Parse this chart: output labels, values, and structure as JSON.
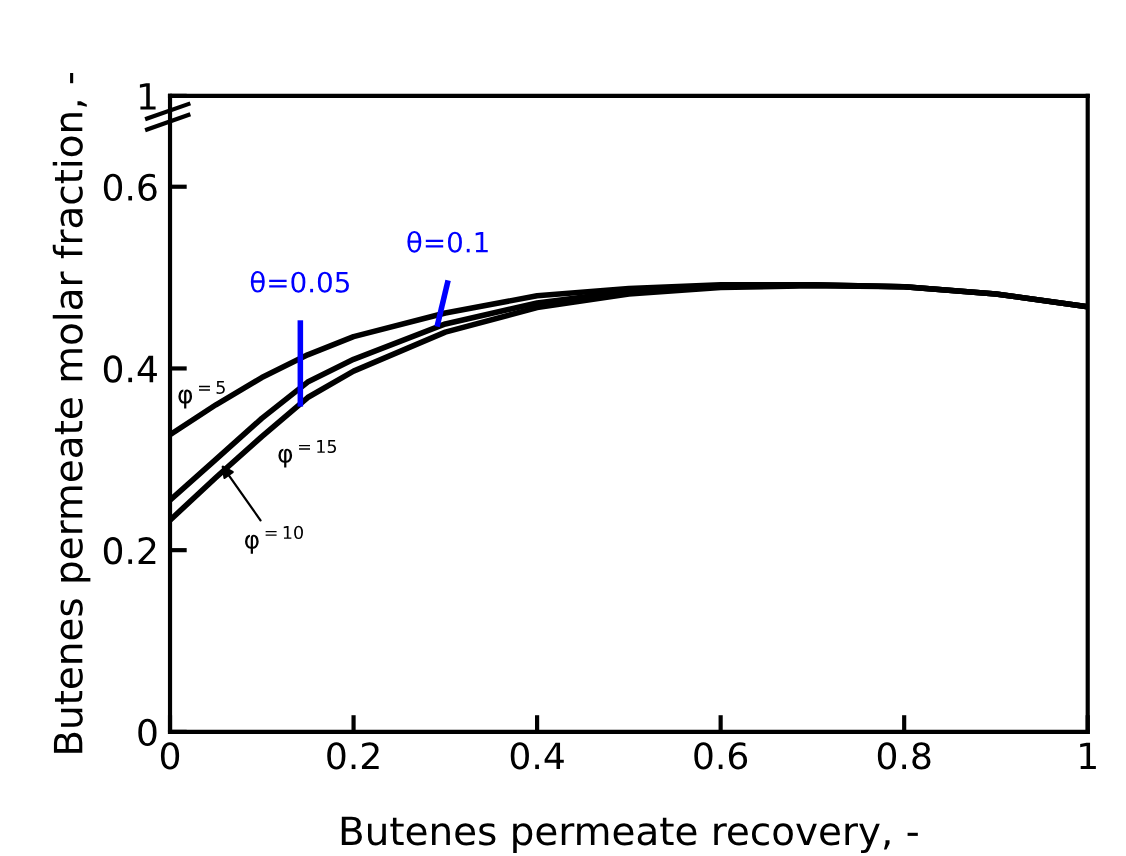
{
  "chart_data": {
    "type": "line",
    "xlabel": "Butenes permeate recovery, -",
    "ylabel": "Butenes permeate molar fraction, -",
    "xlim": [
      0,
      1
    ],
    "xticks": [
      0,
      0.2,
      0.4,
      0.6,
      0.8,
      1
    ],
    "ylim": [
      0,
      0.7
    ],
    "yticks": [
      0,
      0.2,
      0.4,
      0.6,
      {
        "value": 0.7,
        "label": "1"
      }
    ],
    "grid": false,
    "marker": "none",
    "line_style": "solid",
    "x": [
      0,
      0.05,
      0.1,
      0.15,
      0.2,
      0.3,
      0.4,
      0.5,
      0.6,
      0.7,
      0.8,
      0.9,
      1.0
    ],
    "series": [
      {
        "color": "#000000",
        "values": [
          0.327,
          0.36,
          0.39,
          0.415,
          0.435,
          0.461,
          0.48,
          0.488,
          0.492,
          0.492,
          0.49,
          0.482,
          0.468
        ]
      },
      {
        "color": "#000000",
        "values": [
          0.255,
          0.3,
          0.345,
          0.385,
          0.41,
          0.449,
          0.472,
          0.485,
          0.49,
          0.492,
          0.49,
          0.482,
          0.468
        ]
      },
      {
        "color": "#000000",
        "values": [
          0.233,
          0.28,
          0.325,
          0.368,
          0.397,
          0.44,
          0.467,
          0.482,
          0.489,
          0.491,
          0.49,
          0.482,
          0.468
        ]
      },
      {
        "name": "θ=0.05",
        "color": "#0000ff",
        "x": [
          0.142,
          0.142
        ],
        "values": [
          0.358,
          0.453
        ]
      },
      {
        "name": "θ=0.1",
        "color": "#0000ff",
        "x": [
          0.291,
          0.303
        ],
        "values": [
          0.446,
          0.497
        ]
      }
    ],
    "annotations": [
      "φ$^{=5}$",
      "φ$^{=15}$",
      {
        "text": "φ$^{=10}$",
        "x": 0.056,
        "y": 0.294
      }
    ]
  }
}
